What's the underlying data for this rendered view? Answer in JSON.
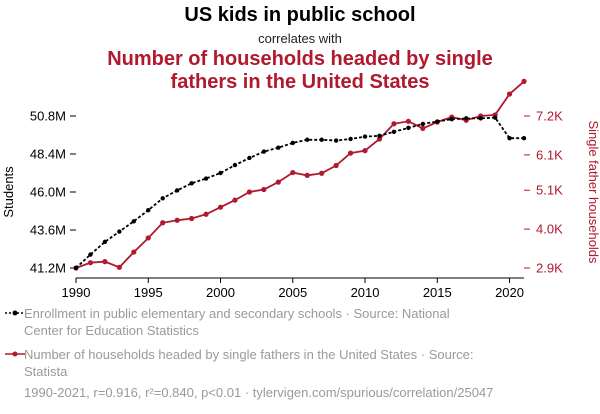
{
  "header": {
    "title": "US kids in public school",
    "subtitle": "correlates with",
    "title2_line1": "Number of households headed by single",
    "title2_line2": "fathers in the United States"
  },
  "colors": {
    "series1": "#000000",
    "series2": "#b0192e",
    "footer_text": "#9a9a9a"
  },
  "legend": {
    "series1_line1": "Enrollment in public elementary and secondary schools · Source: National",
    "series1_line2": "Center for Education Statistics",
    "series2_line1": "Number of households headed by single fathers in the United States · Source:",
    "series2_line2": "Statista"
  },
  "footer": {
    "text": "1990-2021, r=0.916, r²=0.840, p<0.01 · tylervigen.com/spurious/correlation/25047"
  },
  "chart_data": {
    "type": "line",
    "title": "US kids in public school",
    "x": [
      1990,
      1991,
      1992,
      1993,
      1994,
      1995,
      1996,
      1997,
      1998,
      1999,
      2000,
      2001,
      2002,
      2003,
      2004,
      2005,
      2006,
      2007,
      2008,
      2009,
      2010,
      2011,
      2012,
      2013,
      2014,
      2015,
      2016,
      2017,
      2018,
      2019,
      2020,
      2021
    ],
    "xlim": [
      1990,
      2021
    ],
    "x_ticks": [
      1990,
      1995,
      2000,
      2005,
      2010,
      2015,
      2020
    ],
    "series": [
      {
        "name": "Enrollment in public elementary and secondary schools",
        "axis": "left",
        "ylabel": "Students",
        "ylim": [
          41.2,
          50.8
        ],
        "y_ticks": [
          41.2,
          43.6,
          46.0,
          48.4,
          50.8
        ],
        "y_tick_labels": [
          "41.2M",
          "43.6M",
          "46.0M",
          "48.4M",
          "50.8M"
        ],
        "values": [
          41.2,
          42.05,
          42.85,
          43.5,
          44.15,
          44.85,
          45.6,
          46.1,
          46.55,
          46.85,
          47.2,
          47.7,
          48.15,
          48.55,
          48.8,
          49.1,
          49.3,
          49.3,
          49.25,
          49.35,
          49.5,
          49.55,
          49.8,
          50.05,
          50.3,
          50.45,
          50.6,
          50.65,
          50.65,
          50.7,
          49.4,
          49.4
        ]
      },
      {
        "name": "Number of households headed by single fathers in the United States",
        "axis": "right",
        "ylabel": "Single father households",
        "ylim": [
          2.9,
          7.2
        ],
        "y_ticks": [
          2.9,
          4.0,
          5.1,
          6.1,
          7.2
        ],
        "y_tick_labels": [
          "2.9K",
          "4.0K",
          "5.1K",
          "6.1K",
          "7.2K"
        ],
        "values": [
          2.9,
          3.05,
          3.08,
          2.92,
          3.35,
          3.75,
          4.18,
          4.25,
          4.3,
          4.42,
          4.62,
          4.82,
          5.05,
          5.12,
          5.33,
          5.6,
          5.52,
          5.58,
          5.8,
          6.15,
          6.22,
          6.55,
          6.98,
          7.05,
          6.85,
          7.03,
          7.17,
          7.08,
          7.2,
          7.23,
          7.82,
          8.18
        ]
      }
    ]
  }
}
